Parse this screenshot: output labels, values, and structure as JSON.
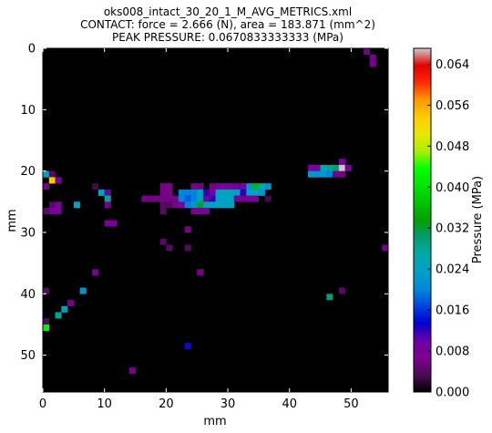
{
  "chart_data": {
    "type": "heatmap",
    "title_lines": [
      "oks008_intact_30_20_1_M_AVG_METRICS.xml",
      "CONTACT: force = 2.666 (N), area = 183.871 (mm^2)",
      "PEAK PRESSURE: 0.0670833333333 (MPa)"
    ],
    "xlabel": "mm",
    "ylabel": "mm",
    "xlim": [
      0,
      56
    ],
    "ylim": [
      56,
      0
    ],
    "x_ticks": [
      0,
      10,
      20,
      30,
      40,
      50
    ],
    "y_ticks": [
      0,
      10,
      20,
      30,
      40,
      50
    ],
    "colorbar": {
      "label": "Pressure (MPa)",
      "min": 0,
      "max": 0.0671,
      "ticks": [
        "0.000",
        "0.008",
        "0.016",
        "0.024",
        "0.032",
        "0.040",
        "0.048",
        "0.056",
        "0.064"
      ],
      "tick_values": [
        0,
        0.008,
        0.016,
        0.024,
        0.032,
        0.04,
        0.048,
        0.056,
        0.064
      ],
      "colormap": "spectral"
    },
    "background_value": 0,
    "cells": [
      {
        "x": 52,
        "y": 0,
        "v": 0.006
      },
      {
        "x": 53,
        "y": 1,
        "v": 0.006
      },
      {
        "x": 53,
        "y": 2,
        "v": 0.006
      },
      {
        "x": 48,
        "y": 18,
        "v": 0.008
      },
      {
        "x": 43,
        "y": 19,
        "v": 0.008
      },
      {
        "x": 44,
        "y": 19,
        "v": 0.008
      },
      {
        "x": 45,
        "y": 19,
        "v": 0.026
      },
      {
        "x": 46,
        "y": 19,
        "v": 0.028
      },
      {
        "x": 47,
        "y": 19,
        "v": 0.03
      },
      {
        "x": 48,
        "y": 19,
        "v": 0.067
      },
      {
        "x": 49,
        "y": 19,
        "v": 0.008
      },
      {
        "x": 43,
        "y": 20,
        "v": 0.022
      },
      {
        "x": 44,
        "y": 20,
        "v": 0.022
      },
      {
        "x": 45,
        "y": 20,
        "v": 0.022
      },
      {
        "x": 46,
        "y": 20,
        "v": 0.02
      },
      {
        "x": 47,
        "y": 20,
        "v": 0.006
      },
      {
        "x": 48,
        "y": 20,
        "v": 0.006
      },
      {
        "x": 0,
        "y": 20,
        "v": 0.024
      },
      {
        "x": 1,
        "y": 20,
        "v": 0.004
      },
      {
        "x": 1,
        "y": 21,
        "v": 0.054
      },
      {
        "x": 2,
        "y": 21,
        "v": 0.008
      },
      {
        "x": 0,
        "y": 22,
        "v": 0.006
      },
      {
        "x": 8,
        "y": 22,
        "v": 0.003
      },
      {
        "x": 19,
        "y": 22,
        "v": 0.006
      },
      {
        "x": 20,
        "y": 22,
        "v": 0.006
      },
      {
        "x": 24,
        "y": 22,
        "v": 0.006
      },
      {
        "x": 25,
        "y": 22,
        "v": 0.006
      },
      {
        "x": 27,
        "y": 22,
        "v": 0.006
      },
      {
        "x": 28,
        "y": 22,
        "v": 0.008
      },
      {
        "x": 29,
        "y": 22,
        "v": 0.008
      },
      {
        "x": 30,
        "y": 22,
        "v": 0.008
      },
      {
        "x": 31,
        "y": 22,
        "v": 0.01
      },
      {
        "x": 32,
        "y": 22,
        "v": 0.008
      },
      {
        "x": 33,
        "y": 22,
        "v": 0.022
      },
      {
        "x": 34,
        "y": 22,
        "v": 0.036
      },
      {
        "x": 35,
        "y": 22,
        "v": 0.026
      },
      {
        "x": 36,
        "y": 22,
        "v": 0.022
      },
      {
        "x": 9,
        "y": 23,
        "v": 0.024
      },
      {
        "x": 10,
        "y": 23,
        "v": 0.01
      },
      {
        "x": 19,
        "y": 23,
        "v": 0.006
      },
      {
        "x": 20,
        "y": 23,
        "v": 0.006
      },
      {
        "x": 22,
        "y": 23,
        "v": 0.02
      },
      {
        "x": 23,
        "y": 23,
        "v": 0.02
      },
      {
        "x": 24,
        "y": 23,
        "v": 0.02
      },
      {
        "x": 25,
        "y": 23,
        "v": 0.024
      },
      {
        "x": 26,
        "y": 23,
        "v": 0.012
      },
      {
        "x": 27,
        "y": 23,
        "v": 0.008
      },
      {
        "x": 28,
        "y": 23,
        "v": 0.024
      },
      {
        "x": 29,
        "y": 23,
        "v": 0.024
      },
      {
        "x": 30,
        "y": 23,
        "v": 0.026
      },
      {
        "x": 31,
        "y": 23,
        "v": 0.024
      },
      {
        "x": 32,
        "y": 23,
        "v": 0.012
      },
      {
        "x": 33,
        "y": 23,
        "v": 0.024
      },
      {
        "x": 34,
        "y": 23,
        "v": 0.024
      },
      {
        "x": 35,
        "y": 23,
        "v": 0.022
      },
      {
        "x": 10,
        "y": 24,
        "v": 0.028
      },
      {
        "x": 16,
        "y": 24,
        "v": 0.006
      },
      {
        "x": 17,
        "y": 24,
        "v": 0.006
      },
      {
        "x": 18,
        "y": 24,
        "v": 0.006
      },
      {
        "x": 19,
        "y": 24,
        "v": 0.006
      },
      {
        "x": 20,
        "y": 24,
        "v": 0.006
      },
      {
        "x": 21,
        "y": 24,
        "v": 0.006
      },
      {
        "x": 22,
        "y": 24,
        "v": 0.02
      },
      {
        "x": 23,
        "y": 24,
        "v": 0.018
      },
      {
        "x": 24,
        "y": 24,
        "v": 0.02
      },
      {
        "x": 25,
        "y": 24,
        "v": 0.024
      },
      {
        "x": 26,
        "y": 24,
        "v": 0.008
      },
      {
        "x": 27,
        "y": 24,
        "v": 0.012
      },
      {
        "x": 28,
        "y": 24,
        "v": 0.024
      },
      {
        "x": 29,
        "y": 24,
        "v": 0.024
      },
      {
        "x": 30,
        "y": 24,
        "v": 0.024
      },
      {
        "x": 31,
        "y": 24,
        "v": 0.008
      },
      {
        "x": 32,
        "y": 24,
        "v": 0.006
      },
      {
        "x": 33,
        "y": 24,
        "v": 0.008
      },
      {
        "x": 34,
        "y": 24,
        "v": 0.006
      },
      {
        "x": 36,
        "y": 24,
        "v": 0.003
      },
      {
        "x": 1,
        "y": 25,
        "v": 0.004
      },
      {
        "x": 2,
        "y": 25,
        "v": 0.008
      },
      {
        "x": 5,
        "y": 25,
        "v": 0.024
      },
      {
        "x": 10,
        "y": 25,
        "v": 0.006
      },
      {
        "x": 19,
        "y": 25,
        "v": 0.004
      },
      {
        "x": 20,
        "y": 25,
        "v": 0.004
      },
      {
        "x": 21,
        "y": 25,
        "v": 0.006
      },
      {
        "x": 22,
        "y": 25,
        "v": 0.008
      },
      {
        "x": 23,
        "y": 25,
        "v": 0.02
      },
      {
        "x": 24,
        "y": 25,
        "v": 0.022
      },
      {
        "x": 25,
        "y": 25,
        "v": 0.032
      },
      {
        "x": 26,
        "y": 25,
        "v": 0.024
      },
      {
        "x": 27,
        "y": 25,
        "v": 0.024
      },
      {
        "x": 28,
        "y": 25,
        "v": 0.024
      },
      {
        "x": 29,
        "y": 25,
        "v": 0.024
      },
      {
        "x": 30,
        "y": 25,
        "v": 0.024
      },
      {
        "x": 0,
        "y": 26,
        "v": 0.004
      },
      {
        "x": 1,
        "y": 26,
        "v": 0.008
      },
      {
        "x": 2,
        "y": 26,
        "v": 0.008
      },
      {
        "x": 19,
        "y": 26,
        "v": 0.004
      },
      {
        "x": 24,
        "y": 26,
        "v": 0.006
      },
      {
        "x": 25,
        "y": 26,
        "v": 0.008
      },
      {
        "x": 26,
        "y": 26,
        "v": 0.008
      },
      {
        "x": 10,
        "y": 28,
        "v": 0.008
      },
      {
        "x": 11,
        "y": 28,
        "v": 0.008
      },
      {
        "x": 23,
        "y": 29,
        "v": 0.006
      },
      {
        "x": 19,
        "y": 31,
        "v": 0.004
      },
      {
        "x": 20,
        "y": 32,
        "v": 0.004
      },
      {
        "x": 23,
        "y": 32,
        "v": 0.004
      },
      {
        "x": 55,
        "y": 32,
        "v": 0.006
      },
      {
        "x": 8,
        "y": 36,
        "v": 0.008
      },
      {
        "x": 25,
        "y": 36,
        "v": 0.006
      },
      {
        "x": 0,
        "y": 39,
        "v": 0.004
      },
      {
        "x": 6,
        "y": 39,
        "v": 0.022
      },
      {
        "x": 48,
        "y": 39,
        "v": 0.004
      },
      {
        "x": 46,
        "y": 40,
        "v": 0.03
      },
      {
        "x": 4,
        "y": 41,
        "v": 0.006
      },
      {
        "x": 3,
        "y": 42,
        "v": 0.024
      },
      {
        "x": 2,
        "y": 43,
        "v": 0.028
      },
      {
        "x": 0,
        "y": 44,
        "v": 0.004
      },
      {
        "x": 0,
        "y": 45,
        "v": 0.042
      },
      {
        "x": 23,
        "y": 48,
        "v": 0.014
      },
      {
        "x": 14,
        "y": 52,
        "v": 0.006
      }
    ]
  }
}
